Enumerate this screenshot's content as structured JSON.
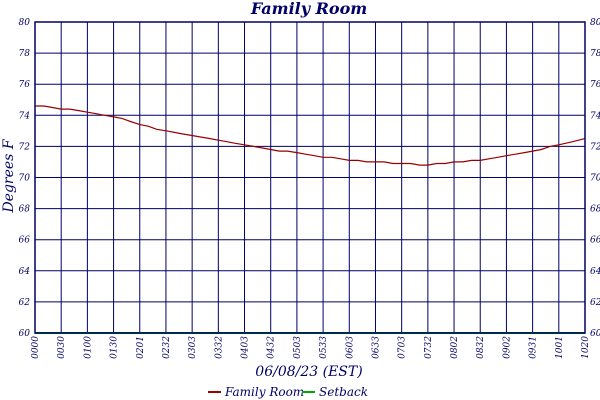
{
  "chart_data": {
    "type": "line",
    "title": "Family Room",
    "xlabel": "06/08/23 (EST)",
    "ylabel": "Degrees F",
    "ylim": [
      60,
      80
    ],
    "yticks": [
      60,
      62,
      64,
      66,
      68,
      70,
      72,
      74,
      76,
      78,
      80
    ],
    "xticks": [
      "0000",
      "0030",
      "0100",
      "0130",
      "0201",
      "0232",
      "0303",
      "0332",
      "0403",
      "0432",
      "0503",
      "0533",
      "0603",
      "0633",
      "0703",
      "0732",
      "0802",
      "0832",
      "0902",
      "0931",
      "1001",
      "1020"
    ],
    "grid": true,
    "legend_position": "bottom-center",
    "colors": {
      "background": "#ffffff",
      "frame": "#000066",
      "grid": "#000066",
      "text": "#000066"
    },
    "series": [
      {
        "name": "Family Room",
        "color": "#990000",
        "x": [
          "0000",
          "0010",
          "0020",
          "0030",
          "0040",
          "0050",
          "0100",
          "0110",
          "0120",
          "0130",
          "0140",
          "0150",
          "0201",
          "0211",
          "0221",
          "0232",
          "0242",
          "0252",
          "0303",
          "0313",
          "0323",
          "0332",
          "0342",
          "0352",
          "0403",
          "0413",
          "0423",
          "0432",
          "0442",
          "0452",
          "0503",
          "0513",
          "0523",
          "0533",
          "0543",
          "0553",
          "0603",
          "0613",
          "0623",
          "0633",
          "0643",
          "0653",
          "0703",
          "0713",
          "0723",
          "0732",
          "0742",
          "0752",
          "0802",
          "0812",
          "0822",
          "0832",
          "0842",
          "0852",
          "0902",
          "0912",
          "0922",
          "0931",
          "0941",
          "0951",
          "1001",
          "1011",
          "1020"
        ],
        "values": [
          74.6,
          74.6,
          74.5,
          74.4,
          74.4,
          74.3,
          74.2,
          74.1,
          74.0,
          73.9,
          73.8,
          73.6,
          73.4,
          73.3,
          73.1,
          73.0,
          72.9,
          72.8,
          72.7,
          72.6,
          72.5,
          72.4,
          72.3,
          72.2,
          72.1,
          72.0,
          71.9,
          71.8,
          71.7,
          71.7,
          71.6,
          71.5,
          71.4,
          71.3,
          71.3,
          71.2,
          71.1,
          71.1,
          71.0,
          71.0,
          71.0,
          70.9,
          70.9,
          70.9,
          70.8,
          70.8,
          70.9,
          70.9,
          71.0,
          71.0,
          71.1,
          71.1,
          71.2,
          71.3,
          71.4,
          71.5,
          71.6,
          71.7,
          71.8,
          72.0,
          72.1,
          72.3,
          72.5
        ]
      },
      {
        "name": "Setback",
        "color": "#00aa00",
        "x": [
          "0000",
          "1020"
        ],
        "values": [
          60,
          60
        ]
      }
    ]
  }
}
